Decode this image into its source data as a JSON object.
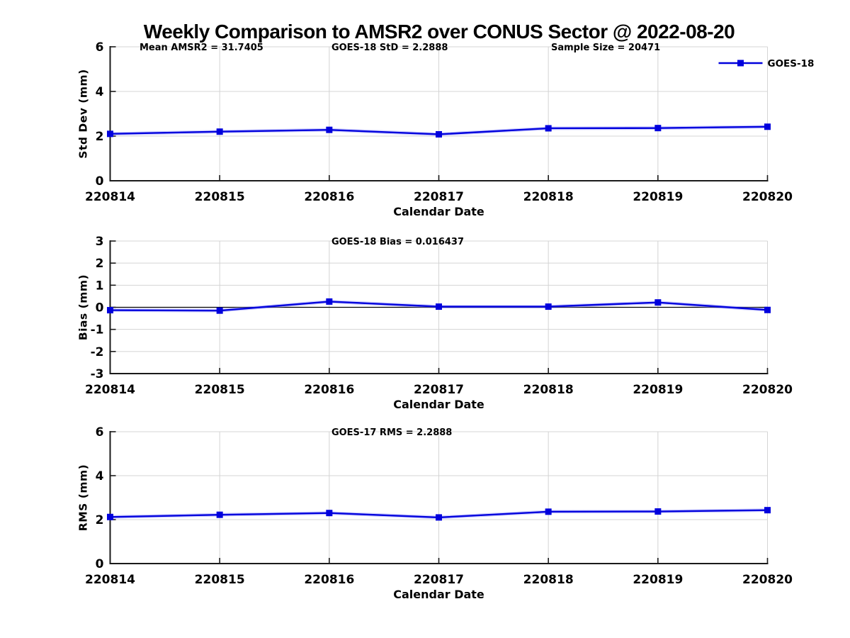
{
  "title": "Weekly Comparison to AMSR2 over CONUS Sector @ 2022-08-20",
  "colors": {
    "line": "#0000dd",
    "line_halo": "#8c8cff",
    "grid": "#d4d4d4",
    "axis": "#1a1a1a",
    "zero_line": "#000000",
    "text": "#000000",
    "background": "#ffffff"
  },
  "stats": {
    "mean_amsr2": 31.7405,
    "goes18_std": 2.2888,
    "sample_size": 20471,
    "goes18_bias": 0.016437,
    "goes17_rms": 2.2888
  },
  "chart_data": [
    {
      "type": "line",
      "name": "std-dev",
      "ylabel": "Std Dev (mm)",
      "xlabel": "Calendar Date",
      "ylim": [
        0,
        6
      ],
      "yticks": [
        0,
        2,
        4,
        6
      ],
      "grid": true,
      "zero_line": false,
      "categories": [
        "220814",
        "220815",
        "220816",
        "220817",
        "220818",
        "220819",
        "220820"
      ],
      "series": [
        {
          "name": "GOES-18",
          "values": [
            2.1,
            2.2,
            2.28,
            2.08,
            2.35,
            2.36,
            2.42
          ]
        }
      ],
      "annotations": [
        {
          "text": "Mean AMSR2 = 31.7405",
          "fx": 0.0447
        },
        {
          "text": "GOES-18 StD = 2.2888",
          "fx": 0.3367
        },
        {
          "text": "Sample Size = 20471",
          "fx": 0.6708
        }
      ],
      "legend": {
        "show": true,
        "label": "GOES-18",
        "position": "top-right"
      }
    },
    {
      "type": "line",
      "name": "bias",
      "ylabel": "Bias (mm)",
      "xlabel": "Calendar Date",
      "ylim": [
        -3,
        3
      ],
      "yticks": [
        -3,
        -2,
        -1,
        0,
        1,
        2,
        3
      ],
      "grid": true,
      "zero_line": true,
      "categories": [
        "220814",
        "220815",
        "220816",
        "220817",
        "220818",
        "220819",
        "220820"
      ],
      "series": [
        {
          "name": "GOES-18",
          "values": [
            -0.13,
            -0.15,
            0.26,
            0.03,
            0.03,
            0.22,
            -0.12
          ]
        }
      ],
      "annotations": [
        {
          "text": "GOES-18 Bias  = 0.016437",
          "fx": 0.3367
        }
      ],
      "legend": {
        "show": false,
        "label": ""
      }
    },
    {
      "type": "line",
      "name": "rms",
      "ylabel": "RMS (mm)",
      "xlabel": "Calendar Date",
      "ylim": [
        0,
        6
      ],
      "yticks": [
        0,
        2,
        4,
        6
      ],
      "grid": true,
      "zero_line": false,
      "categories": [
        "220814",
        "220815",
        "220816",
        "220817",
        "220818",
        "220819",
        "220820"
      ],
      "series": [
        {
          "name": "GOES-18",
          "values": [
            2.12,
            2.22,
            2.3,
            2.1,
            2.36,
            2.37,
            2.43
          ]
        }
      ],
      "annotations": [
        {
          "text": "GOES-17 RMS = 2.2888",
          "fx": 0.3367
        }
      ],
      "legend": {
        "show": false,
        "label": ""
      }
    }
  ]
}
